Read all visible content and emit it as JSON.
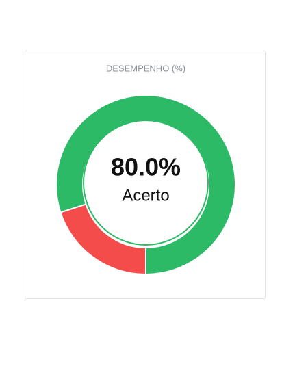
{
  "chart_data": {
    "type": "donut",
    "title": "DESEMPENHO (%)",
    "categories": [
      "Acerto",
      null
    ],
    "values": [
      80,
      20
    ],
    "value_labels": [
      "80.0%",
      null
    ],
    "colors": [
      "#2dba67",
      "#f44b4b"
    ]
  }
}
